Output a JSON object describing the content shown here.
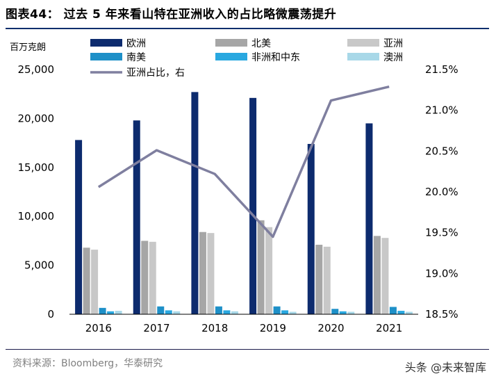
{
  "figure_title": "图表44：  过去 5 年来看山特在亚洲收入的占比略微震荡提升",
  "source_text": "资料来源：Bloomberg，华泰研究",
  "watermark_text": "头条 @未来智库",
  "chart_data": {
    "type": "bar",
    "title": "过去 5 年来看山特在亚洲收入的占比略微震荡提升",
    "ylabel": "百万克朗",
    "categories": [
      "2016",
      "2017",
      "2018",
      "2019",
      "2020",
      "2021"
    ],
    "ylim": [
      0,
      25000
    ],
    "yticks": [
      "0",
      "5,000",
      "10,000",
      "15,000",
      "20,000",
      "25,000"
    ],
    "y2lim": [
      0.185,
      0.215
    ],
    "y2ticks": [
      "18.5%",
      "19.0%",
      "19.5%",
      "20.0%",
      "20.5%",
      "21.0%",
      "21.5%"
    ],
    "series": [
      {
        "name": "欧洲",
        "color": "#0d2b6e",
        "values": [
          17800,
          19800,
          22700,
          22100,
          17400,
          19500
        ]
      },
      {
        "name": "北美",
        "color": "#a6a6a6",
        "values": [
          6800,
          7500,
          8400,
          9600,
          7100,
          8000
        ]
      },
      {
        "name": "亚洲",
        "color": "#c8c8c8",
        "values": [
          6600,
          7400,
          8300,
          8900,
          6900,
          7800
        ]
      },
      {
        "name": "南美",
        "color": "#1e90c8",
        "values": [
          650,
          800,
          800,
          800,
          550,
          750
        ]
      },
      {
        "name": "非洲和中东",
        "color": "#29a8e0",
        "values": [
          300,
          400,
          400,
          400,
          300,
          350
        ]
      },
      {
        "name": "澳洲",
        "color": "#a8d8e8",
        "values": [
          350,
          300,
          300,
          250,
          250,
          250
        ]
      }
    ],
    "line": {
      "name": "亚洲占比，右",
      "color": "#7f7f9f",
      "values": [
        0.2006,
        0.2051,
        0.2022,
        0.1945,
        0.2112,
        0.2129
      ]
    }
  }
}
